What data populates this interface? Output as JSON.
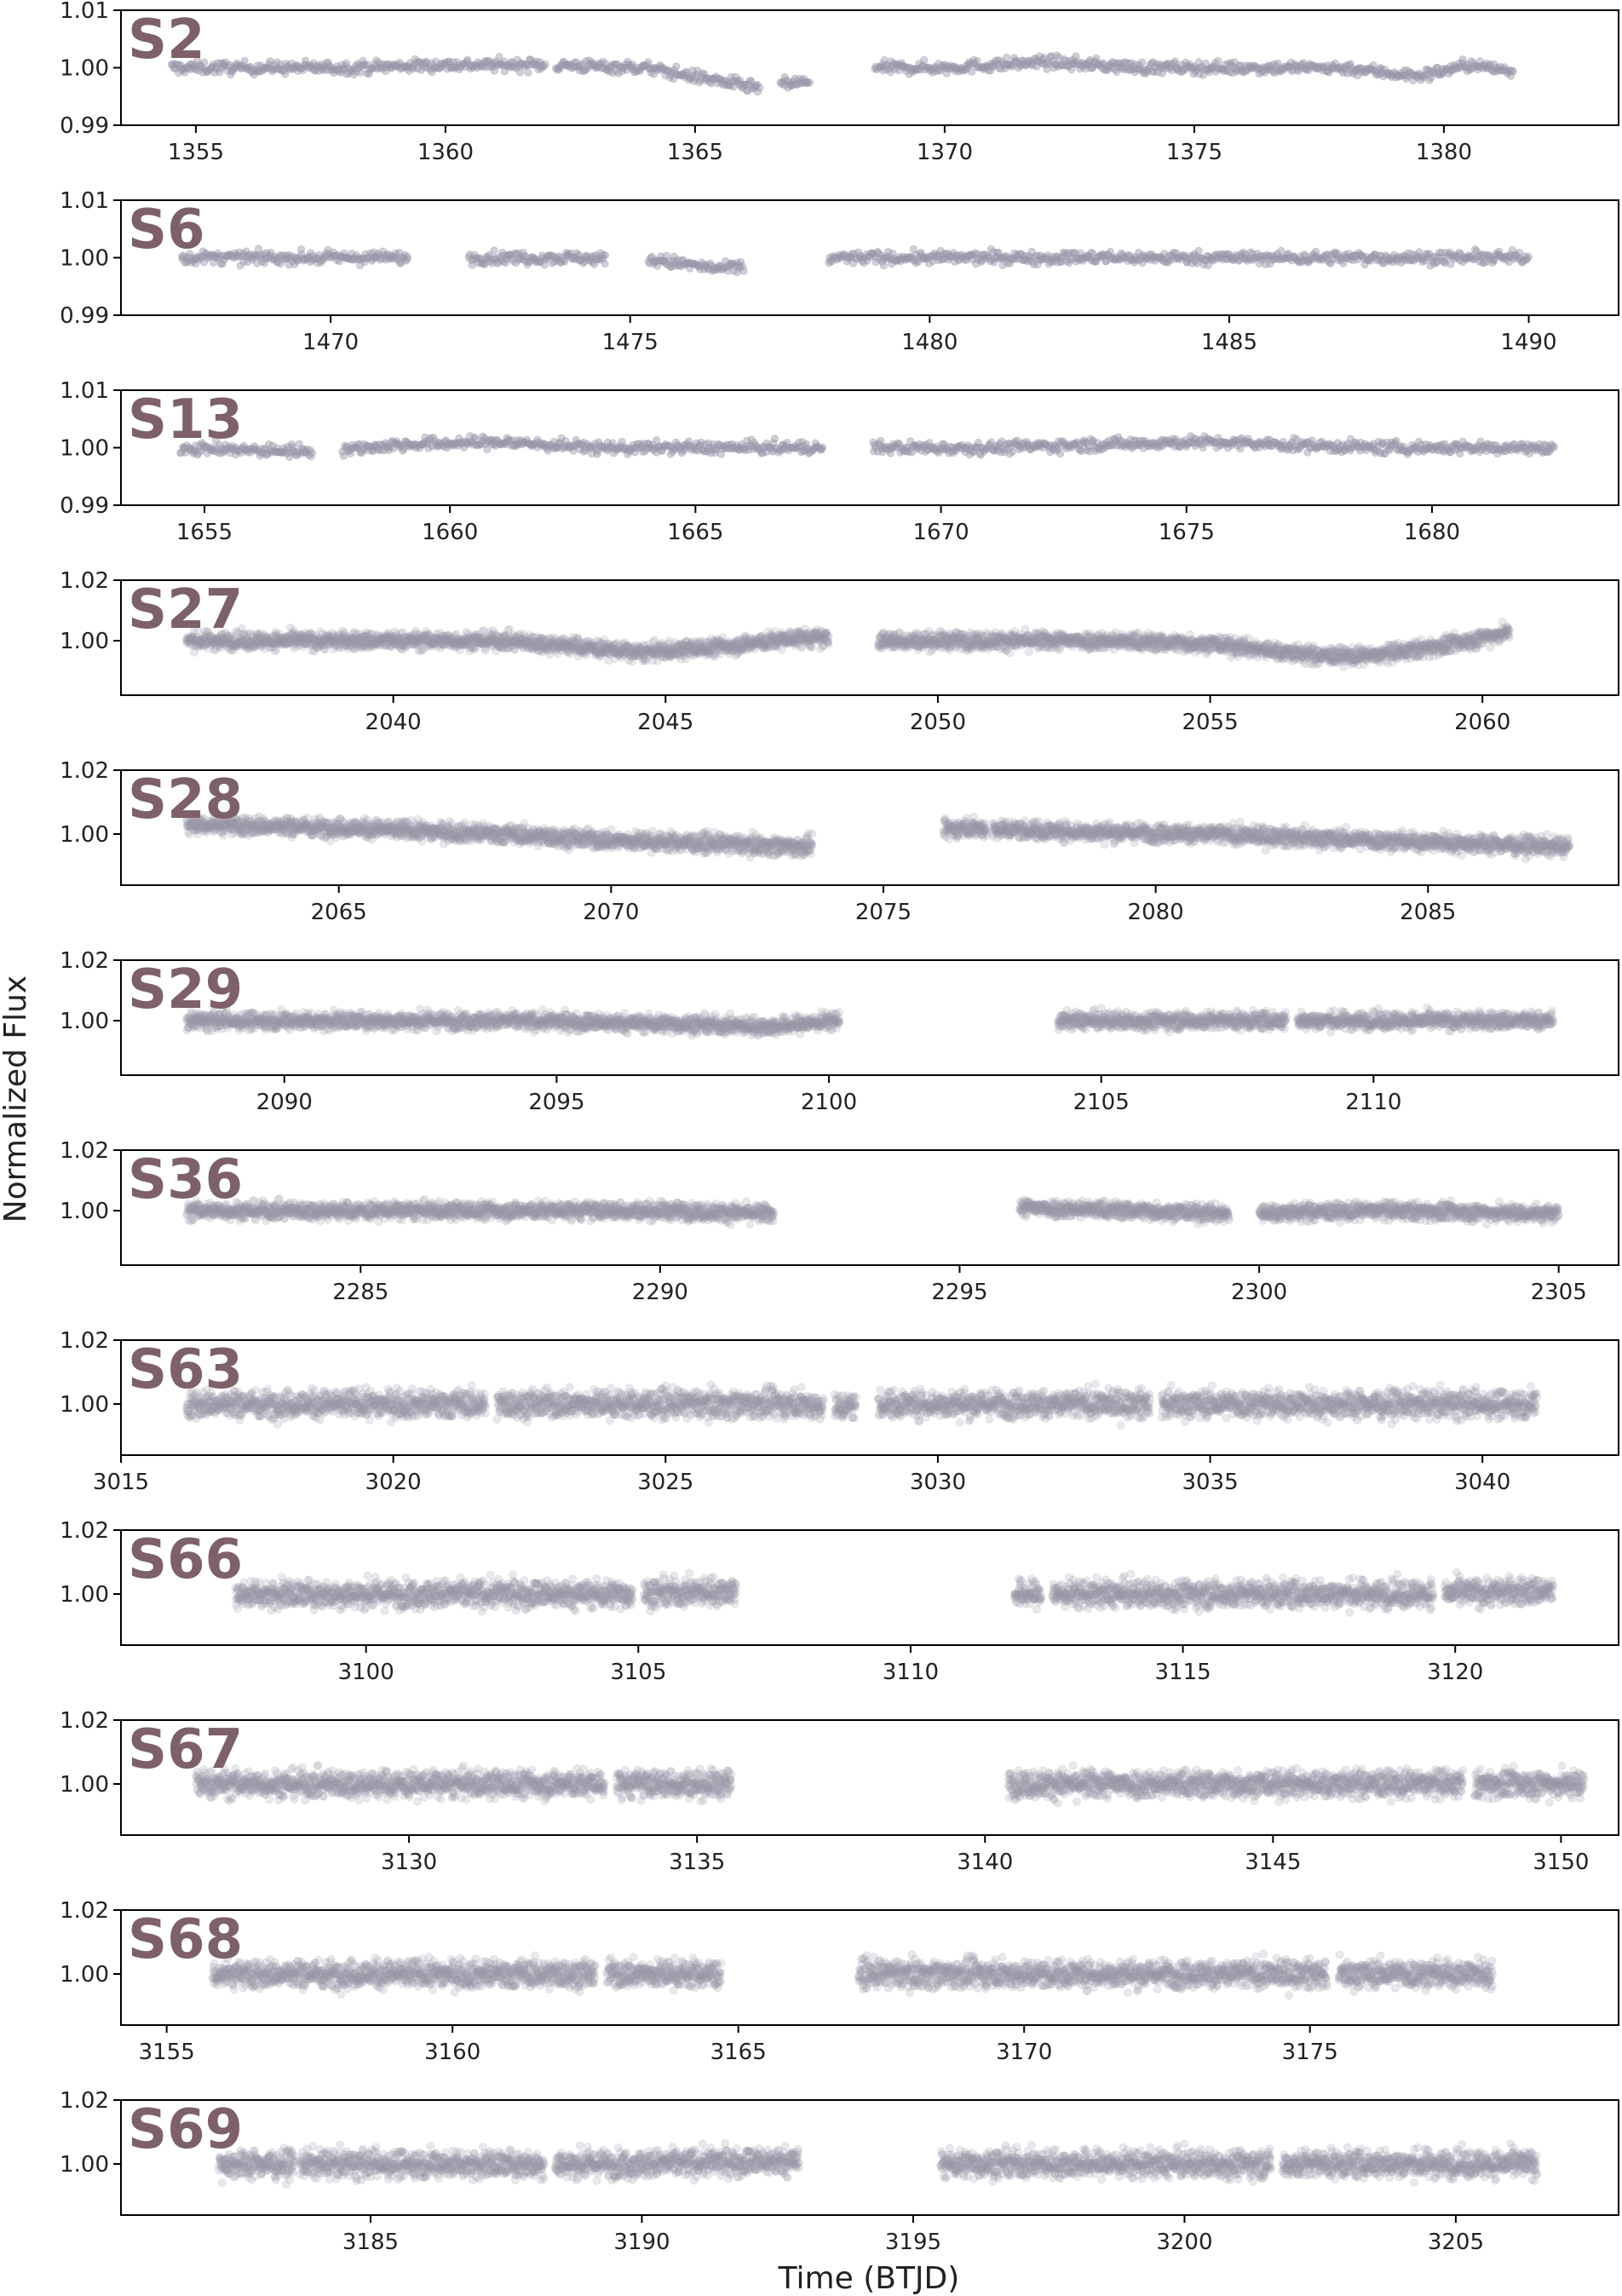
{
  "figure": {
    "ylabel": "Normalized Flux",
    "xlabel": "Time (BTJD)",
    "point_color": "#9a97aa",
    "sector_label_color": "#7d6068"
  },
  "chart_data": [
    {
      "type": "scatter",
      "sector": "S2",
      "ylim": [
        0.99,
        1.01
      ],
      "yticks": [
        "1.01",
        "1.00",
        "0.99"
      ],
      "yticks_values": [
        1.01,
        1.0,
        0.99
      ],
      "xlim": [
        1353.5,
        1383.5
      ],
      "xticks": [
        1355,
        1360,
        1365,
        1370,
        1375,
        1380
      ],
      "x": [
        1354.5,
        1356,
        1358,
        1360,
        1362,
        1364,
        1365.3,
        1366.2,
        1367.2,
        1368.7,
        1370,
        1372,
        1374,
        1376,
        1378,
        1379.5,
        1380.5,
        1381.3
      ],
      "y": [
        1.0,
        1.0,
        1.0,
        1.0005,
        1.0005,
        1.0,
        0.998,
        0.9965,
        0.9975,
        1.0,
        1.0,
        1.001,
        1.0,
        1.0,
        1.0,
        0.9985,
        1.0005,
        0.9995
      ],
      "segments": [
        [
          1354.5,
          1362.0
        ],
        [
          1362.2,
          1366.3
        ],
        [
          1366.7,
          1367.3
        ],
        [
          1368.6,
          1381.4
        ]
      ],
      "scatter": 0.0015,
      "marker": "sparse"
    },
    {
      "type": "scatter",
      "sector": "S6",
      "ylim": [
        0.99,
        1.01
      ],
      "yticks": [
        "1.01",
        "1.00",
        "0.99"
      ],
      "yticks_values": [
        1.01,
        1.0,
        0.99
      ],
      "xlim": [
        1466.5,
        1491.5
      ],
      "xticks": [
        1470,
        1475,
        1480,
        1485,
        1490
      ],
      "x": [
        1467.5,
        1469,
        1471,
        1472.5,
        1474,
        1475.5,
        1476.5,
        1478.5,
        1481,
        1484,
        1487,
        1490
      ],
      "y": [
        1.0,
        1.0,
        1.0,
        1.0,
        1.0,
        0.9995,
        0.998,
        1.0,
        1.0,
        1.0,
        1.0,
        1.0
      ],
      "segments": [
        [
          1467.5,
          1471.3
        ],
        [
          1472.3,
          1474.6
        ],
        [
          1475.3,
          1476.9
        ],
        [
          1478.3,
          1490.0
        ]
      ],
      "scatter": 0.0015,
      "marker": "sparse"
    },
    {
      "type": "scatter",
      "sector": "S13",
      "ylim": [
        0.99,
        1.01
      ],
      "yticks": [
        "1.01",
        "1.00",
        "0.99"
      ],
      "yticks_values": [
        1.01,
        1.0,
        0.99
      ],
      "xlim": [
        1653.3,
        1683.8
      ],
      "xticks": [
        1655,
        1660,
        1665,
        1670,
        1675,
        1680
      ],
      "x": [
        1654.5,
        1656,
        1657.5,
        1659,
        1661,
        1663,
        1665,
        1667,
        1669,
        1671,
        1673,
        1675,
        1677,
        1679,
        1681,
        1682.5
      ],
      "y": [
        1.0,
        0.9995,
        0.9995,
        1.0005,
        1.001,
        1.0,
        1.0,
        1.0,
        1.0,
        1.0,
        1.0005,
        1.001,
        1.0005,
        1.0,
        1.0,
        1.0
      ],
      "segments": [
        [
          1654.5,
          1657.2
        ],
        [
          1657.8,
          1667.6
        ],
        [
          1668.6,
          1682.5
        ]
      ],
      "scatter": 0.0015,
      "marker": "sparse"
    },
    {
      "type": "scatter",
      "sector": "S27",
      "ylim": [
        0.982,
        1.02
      ],
      "yticks": [
        "1.02",
        "1.00"
      ],
      "yticks_values": [
        1.02,
        1.0
      ],
      "xlim": [
        2035.0,
        2062.5
      ],
      "xticks": [
        2040,
        2045,
        2050,
        2055,
        2060
      ],
      "x": [
        2036.2,
        2038,
        2040,
        2042,
        2043.5,
        2044.5,
        2046,
        2047.5,
        2048.7,
        2050.5,
        2053,
        2055,
        2056,
        2057,
        2058,
        2059.5,
        2060.5
      ],
      "y": [
        1.0,
        1.0,
        1.0,
        1.0,
        0.998,
        0.996,
        0.998,
        1.001,
        1.0,
        1.0,
        1.0,
        0.999,
        0.997,
        0.995,
        0.995,
        0.999,
        1.003
      ],
      "segments": [
        [
          2036.2,
          2048.0
        ],
        [
          2048.9,
          2060.5
        ]
      ],
      "scatter": 0.004,
      "marker": "dense"
    },
    {
      "type": "scatter",
      "sector": "S28",
      "ylim": [
        0.984,
        1.02
      ],
      "yticks": [
        "1.02",
        "1.00"
      ],
      "yticks_values": [
        1.02,
        1.0
      ],
      "xlim": [
        2061.0,
        2088.5
      ],
      "xticks": [
        2065,
        2070,
        2075,
        2080,
        2085
      ],
      "x": [
        2062.2,
        2065,
        2068,
        2070,
        2072,
        2073.5,
        2076.5,
        2078,
        2081,
        2084,
        2086,
        2087.5
      ],
      "y": [
        1.003,
        1.002,
        1.0,
        0.998,
        0.997,
        0.996,
        1.002,
        1.001,
        1.0,
        0.998,
        0.997,
        0.996
      ],
      "segments": [
        [
          2062.2,
          2073.7
        ],
        [
          2076.1,
          2076.9
        ],
        [
          2077.0,
          2087.6
        ]
      ],
      "scatter": 0.004,
      "marker": "dense"
    },
    {
      "type": "scatter",
      "sector": "S29",
      "ylim": [
        0.982,
        1.02
      ],
      "yticks": [
        "1.02",
        "1.00"
      ],
      "yticks_values": [
        1.02,
        1.0
      ],
      "xlim": [
        2087.0,
        2114.5
      ],
      "xticks": [
        2090,
        2095,
        2100,
        2105,
        2110
      ],
      "x": [
        2088.2,
        2091,
        2094,
        2097,
        2099,
        2100.1,
        2104.2,
        2106,
        2108.5,
        2111,
        2113.3
      ],
      "y": [
        1.0,
        1.0,
        1.0,
        0.999,
        0.998,
        1.0,
        1.0,
        1.0,
        1.0,
        1.0,
        1.0
      ],
      "segments": [
        [
          2088.2,
          2100.2
        ],
        [
          2104.2,
          2108.4
        ],
        [
          2108.6,
          2113.3
        ]
      ],
      "scatter": 0.004,
      "marker": "dense"
    },
    {
      "type": "scatter",
      "sector": "S36",
      "ylim": [
        0.982,
        1.02
      ],
      "yticks": [
        "1.02",
        "1.00"
      ],
      "yticks_values": [
        1.02,
        1.0
      ],
      "xlim": [
        2281.0,
        2306.0
      ],
      "xticks": [
        2285,
        2290,
        2295,
        2300,
        2305
      ],
      "x": [
        2282.1,
        2285,
        2288,
        2290,
        2291.9,
        2296,
        2298,
        2299.5,
        2302,
        2305
      ],
      "y": [
        1.0,
        1.0,
        1.0,
        1.0,
        0.999,
        1.001,
        1.0,
        0.999,
        1.0,
        0.999
      ],
      "segments": [
        [
          2282.1,
          2291.9
        ],
        [
          2296.0,
          2299.5
        ],
        [
          2300.0,
          2305.0
        ]
      ],
      "scatter": 0.004,
      "marker": "dense"
    },
    {
      "type": "scatter",
      "sector": "S63",
      "ylim": [
        0.984,
        1.02
      ],
      "yticks": [
        "1.02",
        "1.00"
      ],
      "yticks_values": [
        1.02,
        1.0
      ],
      "xlim": [
        3015.0,
        3042.5
      ],
      "xticks": [
        3015,
        3020,
        3025,
        3030,
        3035,
        3040
      ],
      "x": [
        3016.2,
        3021.5,
        3027.5,
        3028.2,
        3028.8,
        3034,
        3041
      ],
      "y": [
        1.0,
        1.0,
        1.0,
        0.999,
        1.0,
        1.0,
        1.0
      ],
      "segments": [
        [
          3016.2,
          3021.7
        ],
        [
          3021.9,
          3027.9
        ],
        [
          3028.1,
          3028.5
        ],
        [
          3028.9,
          3033.9
        ],
        [
          3034.1,
          3041.0
        ]
      ],
      "scatter": 0.006,
      "marker": "dense"
    },
    {
      "type": "scatter",
      "sector": "S66",
      "ylim": [
        0.984,
        1.02
      ],
      "yticks": [
        "1.02",
        "1.00"
      ],
      "yticks_values": [
        1.02,
        1.0
      ],
      "xlim": [
        3095.5,
        3123.0
      ],
      "xticks": [
        3100,
        3105,
        3110,
        3115,
        3120
      ],
      "x": [
        3097.6,
        3102,
        3105,
        3106.7,
        3111.9,
        3115,
        3119,
        3121.8
      ],
      "y": [
        1.0,
        1.0,
        1.0,
        1.001,
        1.0,
        1.0,
        1.0,
        1.001
      ],
      "segments": [
        [
          3097.6,
          3104.9
        ],
        [
          3105.1,
          3106.8
        ],
        [
          3111.9,
          3112.4
        ],
        [
          3112.6,
          3119.6
        ],
        [
          3119.8,
          3121.8
        ]
      ],
      "scatter": 0.006,
      "marker": "dense"
    },
    {
      "type": "scatter",
      "sector": "S67",
      "ylim": [
        0.984,
        1.02
      ],
      "yticks": [
        "1.02",
        "1.00"
      ],
      "yticks_values": [
        1.02,
        1.0
      ],
      "xlim": [
        3125.0,
        3151.0
      ],
      "xticks": [
        3130,
        3135,
        3140,
        3145,
        3150
      ],
      "x": [
        3126.3,
        3130,
        3133,
        3135.1,
        3140.4,
        3145,
        3148,
        3149.3
      ],
      "y": [
        1.0,
        1.0,
        1.0,
        1.0,
        1.0,
        1.0,
        1.0,
        1.0
      ],
      "segments": [
        [
          3126.3,
          3133.4
        ],
        [
          3133.6,
          3135.6
        ],
        [
          3140.4,
          3148.3
        ],
        [
          3148.5,
          3150.4
        ]
      ],
      "scatter": 0.006,
      "marker": "dense"
    },
    {
      "type": "scatter",
      "sector": "S68",
      "ylim": [
        0.984,
        1.02
      ],
      "yticks": [
        "1.02",
        "1.00"
      ],
      "yticks_values": [
        1.02,
        1.0
      ],
      "xlim": [
        3154.2,
        3180.4
      ],
      "xticks": [
        3155,
        3160,
        3165,
        3170,
        3175
      ],
      "x": [
        3155.8,
        3160,
        3162.5,
        3164.7,
        3168,
        3172,
        3175.2,
        3178.2
      ],
      "y": [
        1.0,
        1.0,
        1.0,
        1.0,
        1.0,
        1.0,
        1.0,
        1.0
      ],
      "segments": [
        [
          3155.8,
          3162.5
        ],
        [
          3162.7,
          3164.7
        ],
        [
          3167.1,
          3175.3
        ],
        [
          3175.5,
          3178.2
        ]
      ],
      "scatter": 0.006,
      "marker": "dense"
    },
    {
      "type": "scatter",
      "sector": "S69",
      "ylim": [
        0.984,
        1.02
      ],
      "yticks": [
        "1.02",
        "1.00"
      ],
      "yticks_values": [
        1.02,
        1.0
      ],
      "xlim": [
        3180.4,
        3208.0
      ],
      "xticks": [
        3185,
        3190,
        3195,
        3200,
        3205
      ],
      "x": [
        3182.2,
        3186,
        3188.2,
        3190,
        3192.9,
        3196,
        3200,
        3201.6,
        3204,
        3206.4
      ],
      "y": [
        1.0,
        1.0,
        1.0,
        1.0,
        1.001,
        1.0,
        1.0,
        1.0,
        1.0,
        1.0
      ],
      "segments": [
        [
          3182.2,
          3183.6
        ],
        [
          3183.7,
          3188.2
        ],
        [
          3188.4,
          3192.9
        ],
        [
          3195.5,
          3201.6
        ],
        [
          3201.8,
          3206.5
        ]
      ],
      "scatter": 0.006,
      "marker": "dense"
    }
  ]
}
